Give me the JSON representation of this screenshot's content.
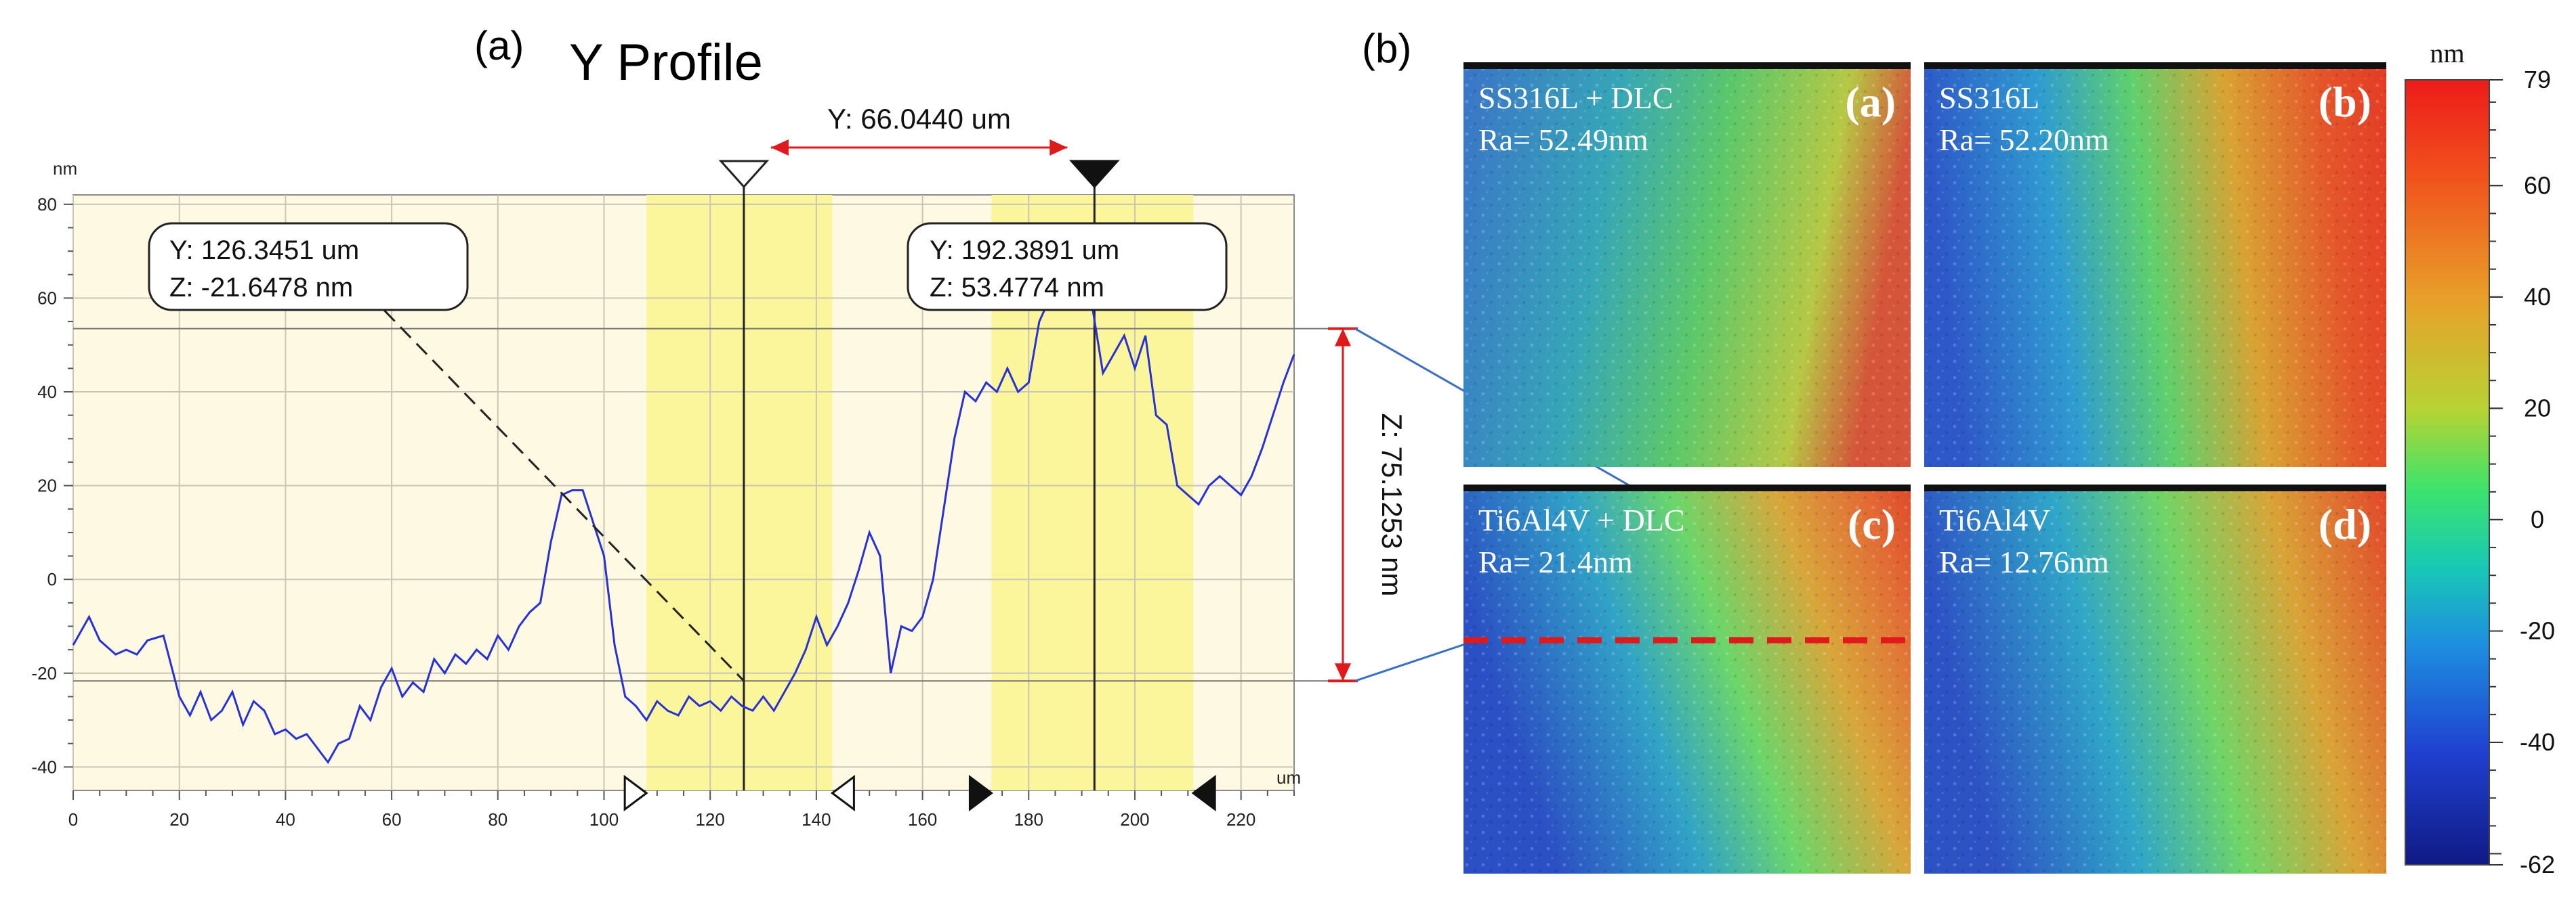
{
  "panel_a": {
    "label": "(a)",
    "chart_data": {
      "type": "line",
      "title": "Y Profile",
      "x_unit": "um",
      "y_unit": "nm",
      "xlim": [
        0,
        230
      ],
      "ylim": [
        -45,
        82
      ],
      "x_ticks": [
        0,
        20,
        40,
        60,
        80,
        100,
        120,
        140,
        160,
        180,
        200,
        220
      ],
      "y_ticks": [
        -40,
        -20,
        0,
        20,
        40,
        60,
        80
      ],
      "grid": true,
      "series": [
        {
          "x": [
            0,
            3,
            5,
            8,
            10,
            12,
            14,
            17,
            20,
            22,
            24,
            26,
            28,
            30,
            32,
            34,
            36,
            38,
            40,
            42,
            44,
            46,
            48,
            50,
            52,
            54,
            56,
            58,
            60,
            62,
            64,
            66,
            68,
            70,
            72,
            74,
            76,
            78,
            80,
            82,
            84,
            86,
            88,
            90,
            92,
            94,
            96,
            98,
            100,
            102,
            104,
            106,
            108,
            110,
            112,
            114,
            116,
            118,
            120,
            122,
            124,
            126,
            128,
            130,
            132,
            134,
            136,
            138,
            140,
            142,
            144,
            146,
            148,
            150,
            152,
            154,
            156,
            158,
            160,
            162,
            164,
            166,
            168,
            170,
            172,
            174,
            176,
            178,
            180,
            182,
            184,
            186,
            188,
            190,
            192,
            194,
            196,
            198,
            200,
            202,
            204,
            206,
            208,
            210,
            212,
            214,
            216,
            218,
            220,
            222,
            224,
            226,
            228,
            230
          ],
          "y": [
            -14,
            -8,
            -13,
            -16,
            -15,
            -16,
            -13,
            -12,
            -25,
            -29,
            -24,
            -30,
            -28,
            -24,
            -31,
            -26,
            -28,
            -33,
            -32,
            -34,
            -33,
            -36,
            -39,
            -35,
            -34,
            -27,
            -30,
            -23,
            -19,
            -25,
            -22,
            -24,
            -17,
            -20,
            -16,
            -18,
            -15,
            -17,
            -12,
            -15,
            -10,
            -7,
            -5,
            8,
            18,
            19,
            19,
            12,
            5,
            -14,
            -25,
            -27,
            -30,
            -26,
            -28,
            -29,
            -25,
            -27,
            -26,
            -28,
            -25,
            -27,
            -28,
            -25,
            -28,
            -24,
            -20,
            -15,
            -8,
            -14,
            -10,
            -5,
            2,
            10,
            5,
            -20,
            -10,
            -11,
            -8,
            0,
            15,
            30,
            40,
            38,
            42,
            40,
            45,
            40,
            42,
            55,
            60,
            58,
            62,
            60,
            58,
            44,
            48,
            52,
            45,
            52,
            35,
            33,
            20,
            18,
            16,
            20,
            22,
            20,
            18,
            22,
            28,
            35,
            42,
            48
          ]
        }
      ],
      "cursor1": {
        "y": "Y: 126.3451 um",
        "z": "Z: -21.6478 nm",
        "x_value": 126.3451,
        "z_value": -21.6478
      },
      "cursor2": {
        "y": "Y: 192.3891 um",
        "z": "Z: 53.4774 nm",
        "x_value": 192.3891,
        "z_value": 53.4774
      },
      "delta_y_label": "Y: 66.0440 um",
      "delta_z_label": "Z: 75.1253 nm",
      "bands": [
        [
          108,
          143
        ],
        [
          173,
          211
        ]
      ]
    }
  },
  "panel_b": {
    "label": "(b)",
    "images": [
      {
        "letter": "(a)",
        "name": "SS316L + DLC",
        "ra": "Ra= 52.49nm"
      },
      {
        "letter": "(b)",
        "name": "SS316L",
        "ra": "Ra= 52.20nm"
      },
      {
        "letter": "(c)",
        "name": "Ti6Al4V + DLC",
        "ra": "Ra= 21.4nm"
      },
      {
        "letter": "(d)",
        "name": "Ti6Al4V",
        "ra": "Ra= 12.76nm"
      }
    ],
    "colorbar": {
      "unit": "nm",
      "max": 79,
      "min": -62,
      "ticks": [
        79,
        60,
        40,
        20,
        0,
        -20,
        -40,
        -62
      ]
    }
  }
}
